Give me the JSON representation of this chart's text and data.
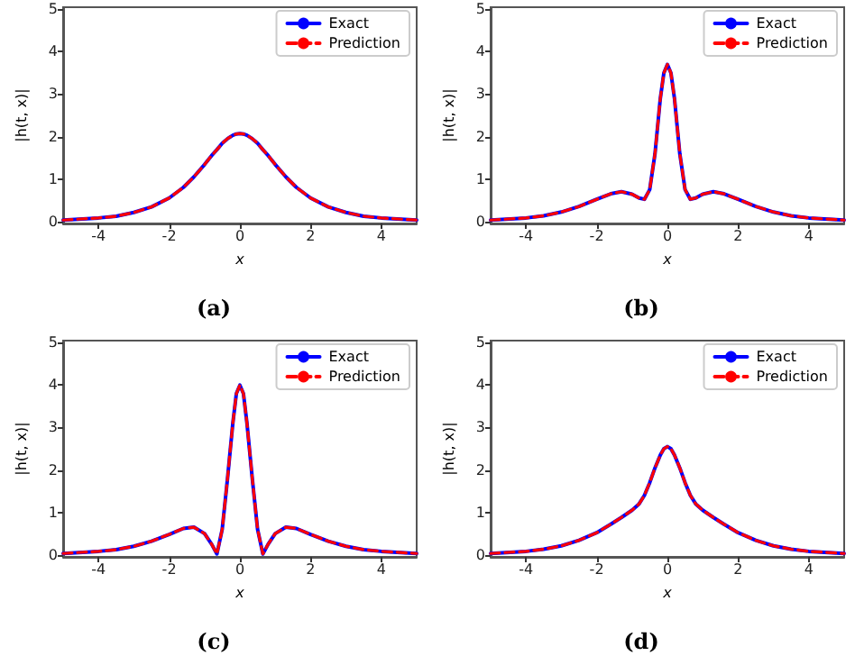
{
  "chart_data": [
    {
      "type": "line",
      "title": "(a)",
      "xlabel": "x",
      "ylabel": "|h(t, x)|",
      "x": [
        -5,
        -4,
        -3.5,
        -3,
        -2.5,
        -2,
        -1.6,
        -1.3,
        -1,
        -0.8,
        -0.65,
        -0.5,
        -0.35,
        -0.2,
        -0.1,
        0,
        0.1,
        0.2,
        0.35,
        0.5,
        0.65,
        0.8,
        1,
        1.3,
        1.6,
        2,
        2.5,
        3,
        3.5,
        4,
        5
      ],
      "xlim": [
        -5,
        5
      ],
      "xticks": [
        -4,
        -2,
        0,
        2,
        4
      ],
      "ylim": [
        -0.05,
        5.05
      ],
      "yticks": [
        0,
        1,
        2,
        3,
        4,
        5
      ],
      "legend": "top right",
      "marker": "none",
      "series": [
        {
          "name": "Exact",
          "color": "#0000ff",
          "line_style": "solid",
          "values": [
            0.03,
            0.08,
            0.12,
            0.21,
            0.34,
            0.55,
            0.8,
            1.05,
            1.34,
            1.55,
            1.69,
            1.84,
            1.95,
            2.03,
            2.06,
            2.07,
            2.06,
            2.03,
            1.95,
            1.84,
            1.69,
            1.55,
            1.34,
            1.05,
            0.8,
            0.55,
            0.34,
            0.21,
            0.12,
            0.08,
            0.03
          ]
        },
        {
          "name": "Prediction",
          "color": "#ff0000",
          "line_style": "dashed",
          "values": [
            0.03,
            0.08,
            0.12,
            0.21,
            0.34,
            0.55,
            0.8,
            1.05,
            1.34,
            1.55,
            1.69,
            1.84,
            1.95,
            2.03,
            2.06,
            2.07,
            2.06,
            2.03,
            1.95,
            1.84,
            1.69,
            1.55,
            1.34,
            1.05,
            0.8,
            0.55,
            0.34,
            0.21,
            0.12,
            0.08,
            0.03
          ]
        }
      ]
    },
    {
      "type": "line",
      "title": "(b)",
      "xlabel": "x",
      "ylabel": "|h(t, x)|",
      "x": [
        -5,
        -4,
        -3.5,
        -3,
        -2.5,
        -2,
        -1.6,
        -1.3,
        -1,
        -0.8,
        -0.65,
        -0.5,
        -0.35,
        -0.2,
        -0.1,
        0,
        0.1,
        0.2,
        0.35,
        0.5,
        0.65,
        0.8,
        1,
        1.3,
        1.6,
        2,
        2.5,
        3,
        3.5,
        4,
        5
      ],
      "xlim": [
        -5,
        5
      ],
      "xticks": [
        -4,
        -2,
        0,
        2,
        4
      ],
      "ylim": [
        -0.05,
        5.05
      ],
      "yticks": [
        0,
        1,
        2,
        3,
        4,
        5
      ],
      "legend": "top right",
      "marker": "none",
      "series": [
        {
          "name": "Exact",
          "color": "#0000ff",
          "line_style": "solid",
          "values": [
            0.03,
            0.08,
            0.13,
            0.22,
            0.35,
            0.52,
            0.65,
            0.7,
            0.64,
            0.55,
            0.52,
            0.75,
            1.6,
            2.9,
            3.5,
            3.7,
            3.5,
            2.9,
            1.6,
            0.75,
            0.52,
            0.55,
            0.64,
            0.7,
            0.65,
            0.52,
            0.35,
            0.22,
            0.13,
            0.08,
            0.03
          ]
        },
        {
          "name": "Prediction",
          "color": "#ff0000",
          "line_style": "dashed",
          "values": [
            0.03,
            0.08,
            0.13,
            0.22,
            0.35,
            0.52,
            0.65,
            0.7,
            0.64,
            0.55,
            0.52,
            0.75,
            1.6,
            2.9,
            3.5,
            3.7,
            3.5,
            2.9,
            1.6,
            0.75,
            0.52,
            0.55,
            0.64,
            0.7,
            0.65,
            0.52,
            0.35,
            0.22,
            0.13,
            0.08,
            0.03
          ]
        }
      ]
    },
    {
      "type": "line",
      "title": "(c)",
      "xlabel": "x",
      "ylabel": "|h(t, x)|",
      "x": [
        -5,
        -4,
        -3.5,
        -3,
        -2.5,
        -2,
        -1.6,
        -1.3,
        -1,
        -0.8,
        -0.65,
        -0.5,
        -0.35,
        -0.2,
        -0.1,
        0,
        0.1,
        0.2,
        0.35,
        0.5,
        0.65,
        0.8,
        1,
        1.3,
        1.6,
        2,
        2.5,
        3,
        3.5,
        4,
        5
      ],
      "xlim": [
        -5,
        5
      ],
      "xticks": [
        -4,
        -2,
        0,
        2,
        4
      ],
      "ylim": [
        -0.05,
        5.05
      ],
      "yticks": [
        0,
        1,
        2,
        3,
        4,
        5
      ],
      "legend": "top right",
      "marker": "none",
      "series": [
        {
          "name": "Exact",
          "color": "#0000ff",
          "line_style": "solid",
          "values": [
            0.03,
            0.08,
            0.12,
            0.2,
            0.32,
            0.48,
            0.62,
            0.65,
            0.5,
            0.25,
            0.02,
            0.6,
            1.8,
            3.1,
            3.8,
            4.0,
            3.8,
            3.1,
            1.8,
            0.6,
            0.02,
            0.25,
            0.5,
            0.65,
            0.62,
            0.48,
            0.32,
            0.2,
            0.12,
            0.08,
            0.03
          ]
        },
        {
          "name": "Prediction",
          "color": "#ff0000",
          "line_style": "dashed",
          "values": [
            0.03,
            0.08,
            0.12,
            0.2,
            0.32,
            0.48,
            0.62,
            0.65,
            0.5,
            0.25,
            0.02,
            0.6,
            1.8,
            3.1,
            3.8,
            4.0,
            3.8,
            3.1,
            1.8,
            0.6,
            0.02,
            0.25,
            0.5,
            0.65,
            0.62,
            0.48,
            0.32,
            0.2,
            0.12,
            0.08,
            0.03
          ]
        }
      ]
    },
    {
      "type": "line",
      "title": "(d)",
      "xlabel": "x",
      "ylabel": "|h(t, x)|",
      "x": [
        -5,
        -4,
        -3.5,
        -3,
        -2.5,
        -2,
        -1.6,
        -1.3,
        -1,
        -0.8,
        -0.65,
        -0.5,
        -0.35,
        -0.2,
        -0.1,
        0,
        0.1,
        0.2,
        0.35,
        0.5,
        0.65,
        0.8,
        1,
        1.3,
        1.6,
        2,
        2.5,
        3,
        3.5,
        4,
        5
      ],
      "xlim": [
        -5,
        5
      ],
      "xticks": [
        -4,
        -2,
        0,
        2,
        4
      ],
      "ylim": [
        -0.05,
        5.05
      ],
      "yticks": [
        0,
        1,
        2,
        3,
        4,
        5
      ],
      "legend": "top right",
      "marker": "none",
      "series": [
        {
          "name": "Exact",
          "color": "#0000ff",
          "line_style": "solid",
          "values": [
            0.03,
            0.08,
            0.13,
            0.21,
            0.34,
            0.52,
            0.72,
            0.88,
            1.05,
            1.2,
            1.4,
            1.7,
            2.05,
            2.35,
            2.5,
            2.55,
            2.5,
            2.35,
            2.05,
            1.7,
            1.4,
            1.2,
            1.05,
            0.88,
            0.72,
            0.52,
            0.34,
            0.21,
            0.13,
            0.08,
            0.03
          ]
        },
        {
          "name": "Prediction",
          "color": "#ff0000",
          "line_style": "dashed",
          "values": [
            0.03,
            0.08,
            0.13,
            0.21,
            0.34,
            0.52,
            0.72,
            0.88,
            1.05,
            1.2,
            1.4,
            1.7,
            2.05,
            2.35,
            2.5,
            2.55,
            2.5,
            2.35,
            2.05,
            1.7,
            1.4,
            1.2,
            1.05,
            0.88,
            0.72,
            0.52,
            0.34,
            0.21,
            0.13,
            0.08,
            0.03
          ]
        }
      ]
    }
  ]
}
